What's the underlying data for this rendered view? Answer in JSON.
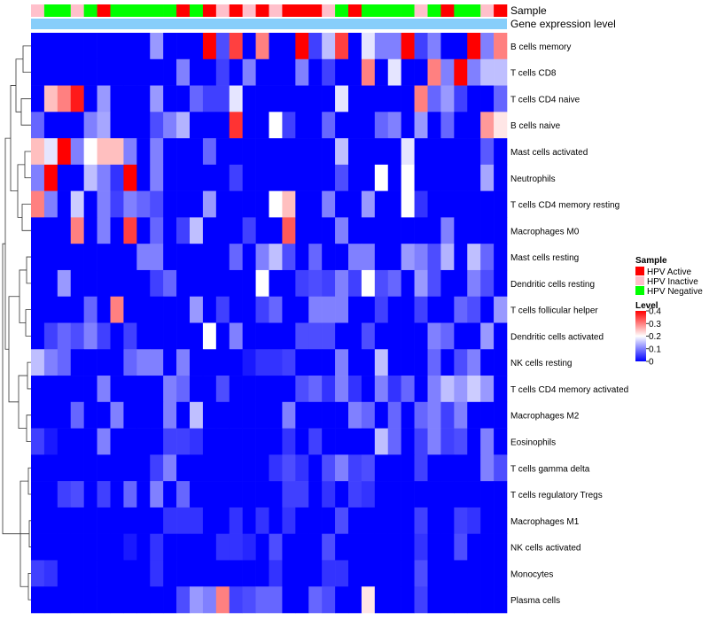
{
  "chart_data": {
    "type": "heatmap",
    "annotation_row_labels": [
      "Sample",
      "Gene expression level"
    ],
    "sample_colors": {
      "HPV Active": "#ff0000",
      "HPV Inactive": "#ffc0cb",
      "HPV Negative": "#00ff00"
    },
    "gene_expression_color": "#87cefa",
    "sample_groups": [
      "HPV Inactive",
      "HPV Negative",
      "HPV Negative",
      "HPV Inactive",
      "HPV Negative",
      "HPV Active",
      "HPV Negative",
      "HPV Negative",
      "HPV Negative",
      "HPV Negative",
      "HPV Negative",
      "HPV Active",
      "HPV Negative",
      "HPV Active",
      "HPV Inactive",
      "HPV Active",
      "HPV Inactive",
      "HPV Active",
      "HPV Inactive",
      "HPV Active",
      "HPV Active",
      "HPV Active",
      "HPV Inactive",
      "HPV Negative",
      "HPV Active",
      "HPV Negative",
      "HPV Negative",
      "HPV Negative",
      "HPV Negative",
      "HPV Inactive",
      "HPV Negative",
      "HPV Active",
      "HPV Negative",
      "HPV Negative",
      "HPV Inactive",
      "HPV Active"
    ],
    "rows": [
      "B cells memory",
      "T cells CD8",
      "T cells CD4 naive",
      "B cells naive",
      "Mast cells activated",
      "Neutrophils",
      "T cells CD4 memory resting",
      "Macrophages M0",
      "Mast cells resting",
      "Dendritic cells resting",
      "T cells follicular helper",
      "Dendritic cells activated",
      "NK cells resting",
      "T cells CD4 memory activated",
      "Macrophages M2",
      "Eosinophils",
      "T cells gamma delta",
      "T cells regulatory  Tregs",
      "Macrophages M1",
      "NK cells activated",
      "Monocytes",
      "Plasma cells"
    ],
    "values": [
      [
        0,
        0,
        0,
        0,
        0,
        0,
        0,
        0,
        0,
        0.12,
        0,
        0,
        0,
        0.4,
        0.06,
        0.35,
        0,
        0.3,
        0,
        0,
        0.4,
        0.05,
        0.15,
        0.35,
        0,
        0.18,
        0.1,
        0.1,
        0.4,
        0.05,
        0.1,
        0,
        0,
        0.4,
        0.1,
        0.3
      ],
      [
        0,
        0,
        0,
        0,
        0,
        0,
        0,
        0,
        0,
        0,
        0,
        0.1,
        0,
        0,
        0.05,
        0,
        0.1,
        0,
        0,
        0,
        0.1,
        0,
        0.05,
        0,
        0,
        0.3,
        0,
        0.18,
        0,
        0,
        0.3,
        0.1,
        0.4,
        0.1,
        0.15,
        0.15
      ],
      [
        0,
        0.25,
        0.3,
        0.38,
        0,
        0.12,
        0,
        0,
        0,
        0.12,
        0,
        0,
        0.08,
        0.05,
        0.05,
        0.18,
        0,
        0,
        0,
        0,
        0,
        0,
        0,
        0.18,
        0,
        0,
        0,
        0,
        0,
        0.3,
        0.08,
        0.12,
        0.05,
        0,
        0,
        0.08
      ],
      [
        0.08,
        0,
        0,
        0,
        0.1,
        0.13,
        0,
        0,
        0,
        0.06,
        0.1,
        0.14,
        0,
        0,
        0,
        0.36,
        0,
        0,
        0.2,
        0.05,
        0,
        0,
        0.08,
        0,
        0,
        0,
        0.08,
        0.1,
        0,
        0.12,
        0,
        0.08,
        0,
        0,
        0.28,
        0.22
      ],
      [
        0.25,
        0.18,
        0.4,
        0.1,
        0.2,
        0.25,
        0.25,
        0.1,
        0,
        0.1,
        0,
        0,
        0,
        0.08,
        0,
        0,
        0,
        0,
        0,
        0,
        0,
        0,
        0,
        0.15,
        0,
        0,
        0,
        0,
        0.18,
        0,
        0,
        0,
        0,
        0,
        0.07,
        0
      ],
      [
        0.1,
        0.4,
        0,
        0,
        0.15,
        0.1,
        0.04,
        0.4,
        0,
        0.1,
        0,
        0,
        0,
        0,
        0,
        0.05,
        0,
        0,
        0,
        0,
        0,
        0,
        0,
        0.06,
        0,
        0,
        0.2,
        0,
        0.2,
        0,
        0,
        0,
        0,
        0,
        0.13,
        0
      ],
      [
        0.3,
        0.1,
        0,
        0.16,
        0,
        0.1,
        0.05,
        0.1,
        0.08,
        0.06,
        0,
        0,
        0,
        0.12,
        0,
        0,
        0,
        0,
        0.2,
        0.25,
        0,
        0,
        0.1,
        0,
        0,
        0.12,
        0,
        0,
        0.2,
        0.04,
        0,
        0,
        0,
        0,
        0,
        0
      ],
      [
        0,
        0,
        0,
        0.3,
        0,
        0.1,
        0,
        0.35,
        0,
        0.08,
        0,
        0.05,
        0.15,
        0,
        0,
        0,
        0.05,
        0,
        0,
        0.33,
        0,
        0,
        0,
        0.1,
        0,
        0,
        0,
        0,
        0,
        0,
        0,
        0.1,
        0,
        0,
        0,
        0
      ],
      [
        0,
        0,
        0,
        0,
        0,
        0,
        0,
        0,
        0.1,
        0.1,
        0,
        0,
        0,
        0,
        0,
        0.08,
        0,
        0.1,
        0.15,
        0.06,
        0,
        0.08,
        0,
        0,
        0.1,
        0.1,
        0,
        0,
        0.12,
        0.1,
        0.06,
        0.14,
        0,
        0.15,
        0.08,
        0
      ],
      [
        0,
        0,
        0.12,
        0,
        0,
        0,
        0,
        0,
        0,
        0.05,
        0.08,
        0,
        0,
        0,
        0,
        0,
        0,
        0.2,
        0,
        0,
        0.05,
        0.06,
        0.05,
        0.1,
        0.05,
        0.2,
        0.06,
        0.08,
        0,
        0.12,
        0.06,
        0,
        0,
        0.1,
        0.06,
        0
      ],
      [
        0,
        0,
        0,
        0,
        0.08,
        0,
        0.3,
        0,
        0,
        0,
        0,
        0,
        0.12,
        0,
        0.05,
        0,
        0,
        0.05,
        0.08,
        0,
        0,
        0.1,
        0.1,
        0.1,
        0,
        0,
        0.05,
        0,
        0,
        0.05,
        0,
        0,
        0.08,
        0.06,
        0,
        0.12
      ],
      [
        0,
        0.05,
        0.08,
        0.06,
        0.1,
        0.05,
        0,
        0.05,
        0,
        0,
        0,
        0,
        0,
        0.2,
        0,
        0.1,
        0,
        0,
        0,
        0,
        0.06,
        0.06,
        0.06,
        0,
        0,
        0.06,
        0,
        0,
        0,
        0,
        0.1,
        0.08,
        0,
        0,
        0.12,
        0
      ],
      [
        0.15,
        0.1,
        0.08,
        0,
        0,
        0,
        0,
        0.08,
        0.1,
        0.1,
        0,
        0.1,
        0,
        0,
        0,
        0,
        0.02,
        0.04,
        0.04,
        0.05,
        0,
        0,
        0,
        0.1,
        0,
        0,
        0.15,
        0,
        0,
        0,
        0.08,
        0,
        0.06,
        0.1,
        0,
        0
      ],
      [
        0,
        0,
        0,
        0,
        0,
        0.1,
        0,
        0,
        0,
        0,
        0.1,
        0.08,
        0,
        0,
        0.06,
        0,
        0,
        0,
        0,
        0,
        0.06,
        0.08,
        0.04,
        0.1,
        0.04,
        0,
        0.1,
        0.04,
        0.08,
        0,
        0.1,
        0.15,
        0.12,
        0.16,
        0.12,
        0
      ],
      [
        0,
        0,
        0,
        0.08,
        0,
        0,
        0.1,
        0,
        0,
        0,
        0.1,
        0,
        0.15,
        0,
        0,
        0,
        0,
        0,
        0,
        0.1,
        0,
        0,
        0,
        0,
        0.1,
        0.08,
        0,
        0.08,
        0,
        0.08,
        0.1,
        0.05,
        0.1,
        0,
        0,
        0
      ],
      [
        0.05,
        0.02,
        0,
        0,
        0,
        0.1,
        0,
        0,
        0,
        0,
        0.05,
        0.05,
        0.04,
        0,
        0,
        0,
        0,
        0,
        0,
        0.04,
        0,
        0.05,
        0,
        0,
        0,
        0,
        0.15,
        0.08,
        0,
        0.05,
        0.1,
        0.05,
        0.06,
        0,
        0.1,
        0
      ],
      [
        0,
        0,
        0,
        0,
        0,
        0,
        0,
        0,
        0,
        0.05,
        0.1,
        0,
        0,
        0,
        0,
        0,
        0,
        0,
        0.04,
        0.06,
        0.04,
        0,
        0.06,
        0.1,
        0.05,
        0.06,
        0,
        0,
        0,
        0.05,
        0,
        0,
        0,
        0,
        0.1,
        0.06
      ],
      [
        0,
        0,
        0.05,
        0.06,
        0,
        0.05,
        0,
        0.08,
        0,
        0.1,
        0,
        0.08,
        0,
        0,
        0,
        0,
        0,
        0,
        0,
        0.05,
        0.05,
        0,
        0.04,
        0,
        0.05,
        0.04,
        0,
        0,
        0,
        0,
        0,
        0,
        0,
        0,
        0,
        0
      ],
      [
        0,
        0,
        0,
        0,
        0,
        0,
        0,
        0,
        0,
        0,
        0.04,
        0.04,
        0.04,
        0,
        0,
        0.04,
        0,
        0.04,
        0,
        0.04,
        0,
        0,
        0,
        0.06,
        0,
        0,
        0,
        0,
        0,
        0.05,
        0,
        0,
        0.05,
        0.04,
        0,
        0
      ],
      [
        0,
        0,
        0,
        0,
        0,
        0,
        0,
        0.02,
        0,
        0.04,
        0,
        0,
        0,
        0,
        0.04,
        0.04,
        0.03,
        0,
        0.06,
        0,
        0,
        0,
        0.06,
        0,
        0,
        0,
        0,
        0,
        0,
        0.04,
        0,
        0,
        0.06,
        0,
        0,
        0
      ],
      [
        0.05,
        0.04,
        0,
        0,
        0,
        0,
        0,
        0,
        0,
        0.04,
        0,
        0,
        0,
        0,
        0,
        0,
        0,
        0,
        0.04,
        0,
        0,
        0,
        0.04,
        0.04,
        0,
        0,
        0,
        0,
        0,
        0.06,
        0,
        0,
        0,
        0,
        0,
        0
      ],
      [
        0,
        0,
        0,
        0,
        0,
        0,
        0,
        0,
        0,
        0,
        0,
        0.06,
        0.12,
        0.1,
        0.3,
        0.05,
        0.06,
        0.08,
        0.08,
        0,
        0,
        0.08,
        0.06,
        0,
        0,
        0.22,
        0,
        0,
        0,
        0.05,
        0,
        0,
        0,
        0,
        0,
        0
      ]
    ],
    "legend": {
      "sample_title": "Sample",
      "sample_entries": [
        "HPV Active",
        "HPV Inactive",
        "HPV Negative"
      ],
      "level_title": "Level",
      "level_ticks": [
        "0.4",
        "0.3",
        "0.2",
        "0.1",
        "0"
      ],
      "level_colors": [
        "#0000ff",
        "#ffffff",
        "#ff0000"
      ],
      "level_range": [
        0,
        0.4
      ]
    }
  }
}
